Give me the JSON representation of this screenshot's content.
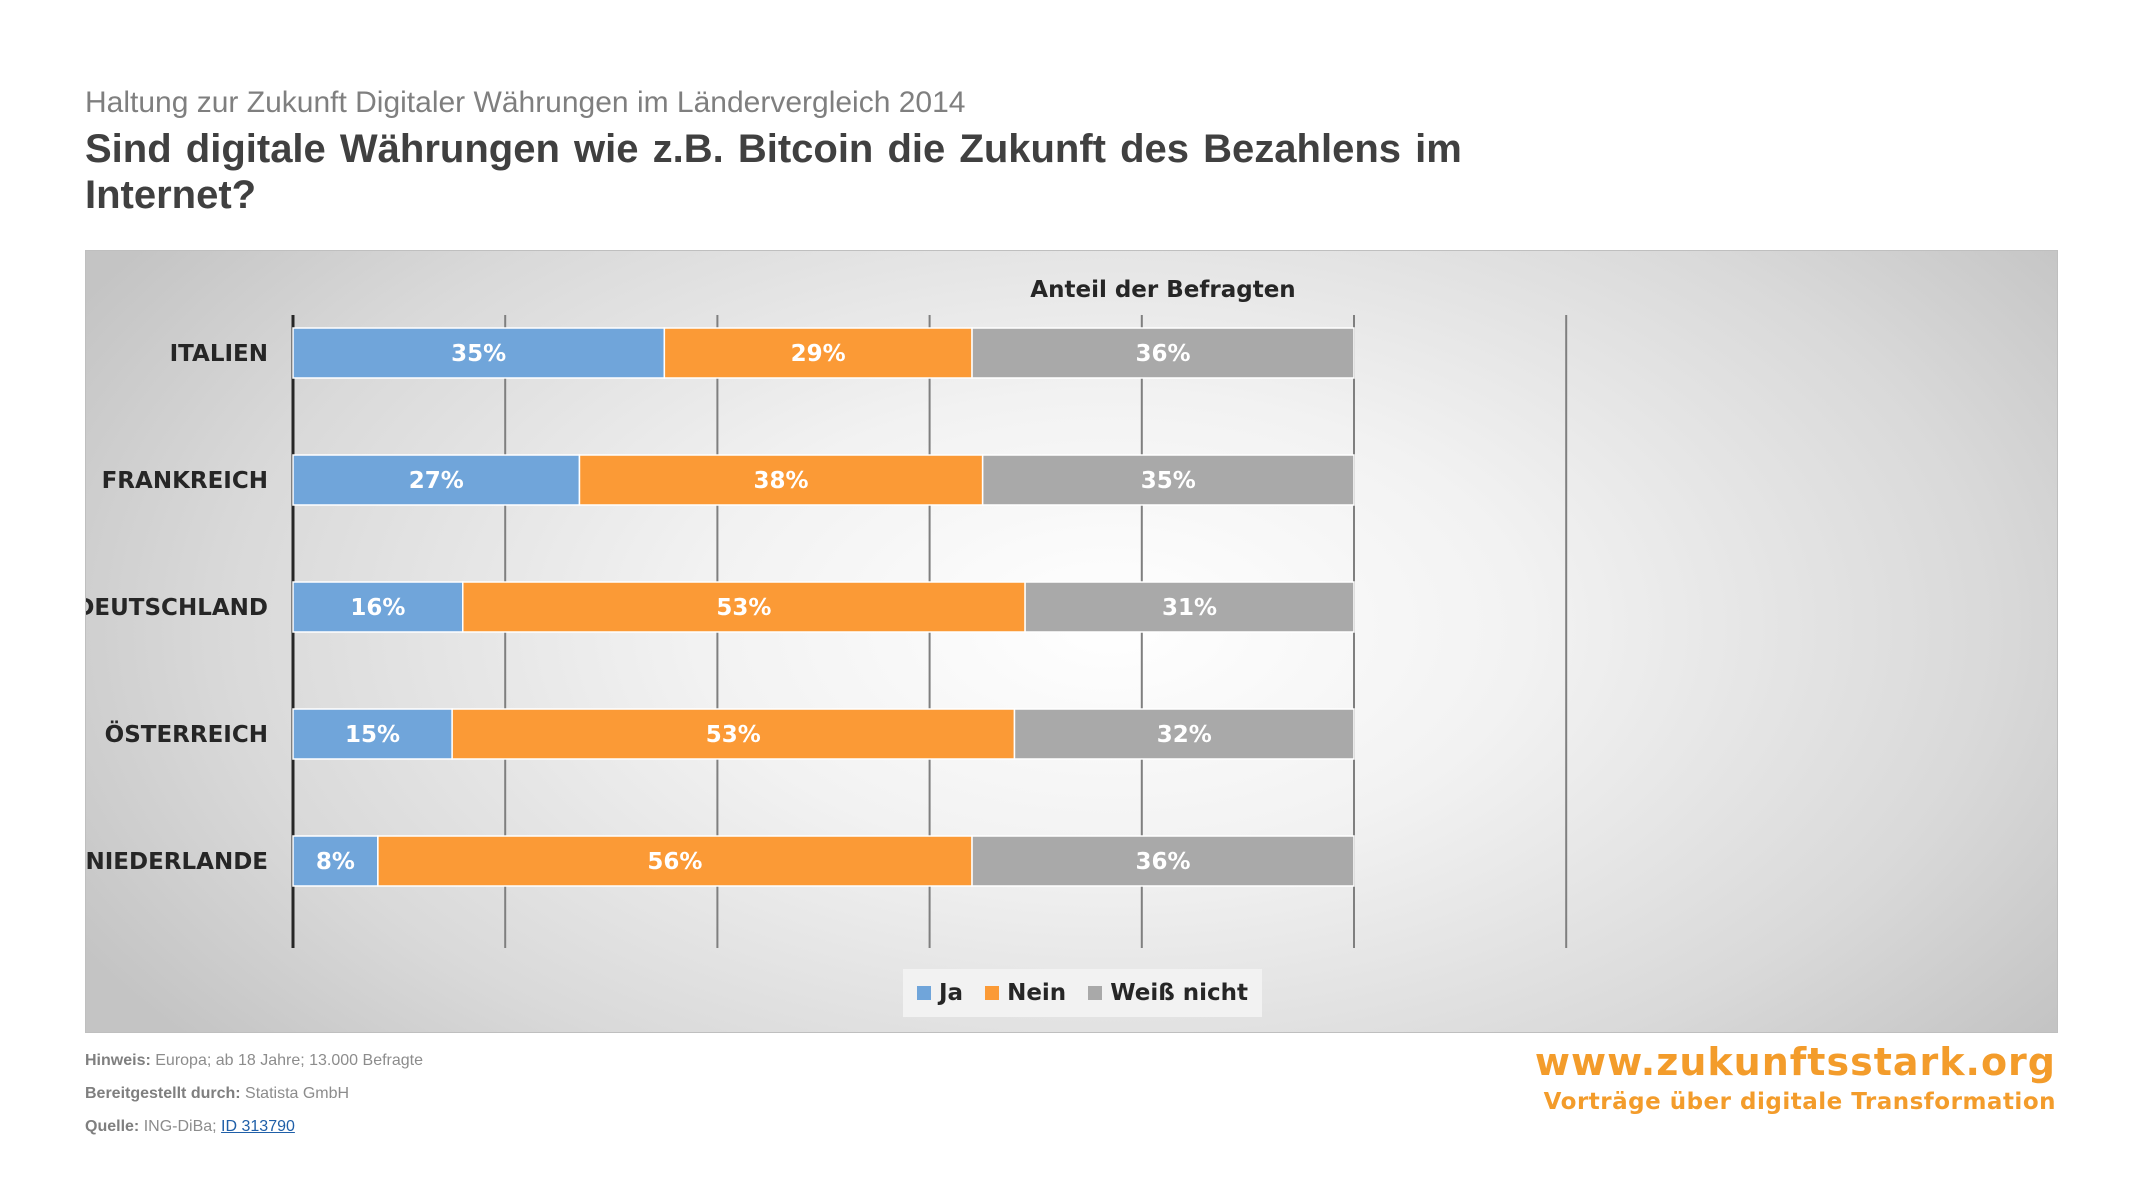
{
  "header": {
    "subtitle": "Haltung zur Zukunft Digitaler Währungen im Ländervergleich 2014",
    "title": "Sind digitale Währungen wie z.B. Bitcoin die Zukunft des Bezahlens im Internet?"
  },
  "chart_data": {
    "type": "bar",
    "orientation": "horizontal",
    "stacked": true,
    "title": "Anteil der Befragten",
    "categories": [
      "ITALIEN",
      "FRANKREICH",
      "DEUTSCHLAND",
      "ÖSTERREICH",
      "NIEDERLANDE"
    ],
    "series": [
      {
        "name": "Ja",
        "color": "#70a5da",
        "values": [
          35,
          27,
          16,
          15,
          8
        ]
      },
      {
        "name": "Nein",
        "color": "#fb9a36",
        "values": [
          29,
          38,
          53,
          53,
          56
        ]
      },
      {
        "name": "Weiß nicht",
        "color": "#a9a9a9",
        "values": [
          36,
          35,
          31,
          32,
          36
        ]
      }
    ],
    "value_suffix": "%",
    "xlim": [
      0,
      120
    ],
    "grid": true,
    "legend_position": "bottom"
  },
  "footer": {
    "notes": [
      {
        "label": "Hinweis:",
        "text": "Europa; ab 18 Jahre; 13.000 Befragte"
      },
      {
        "label": "Bereitgestellt durch:",
        "text": "Statista GmbH"
      },
      {
        "label": "Quelle:",
        "text": "ING-DiBa;",
        "link": "ID 313790"
      }
    ],
    "brand_url": "www.zukunftsstark.org",
    "brand_tagline": "Vorträge über digitale Transformation"
  }
}
